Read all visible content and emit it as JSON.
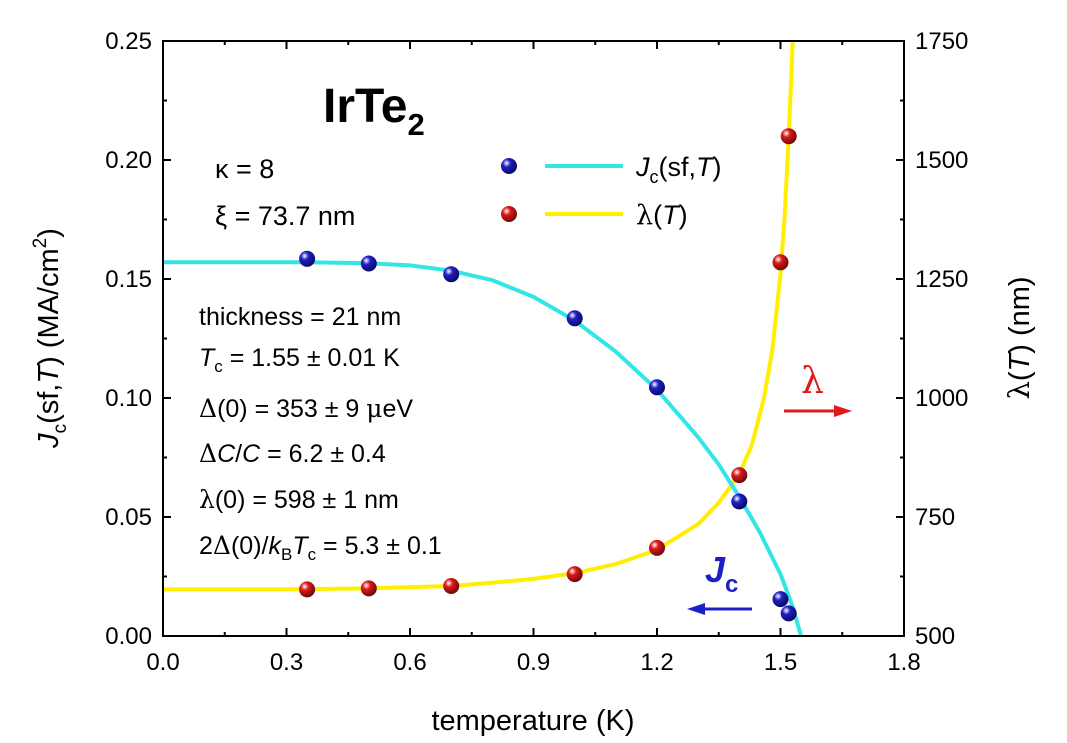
{
  "chart_data": {
    "type": "scatter",
    "title": "IrTe2",
    "xlabel": "temperature (K)",
    "ylabel_left": "Jc(sf,T) (MA/cm2)",
    "ylabel_right": "λ(T) (nm)",
    "xlim": [
      0.0,
      1.8
    ],
    "ylim_left": [
      0.0,
      0.25
    ],
    "ylim_right": [
      500,
      1750
    ],
    "x_ticks": [
      "0.0",
      "0.3",
      "0.6",
      "0.9",
      "1.2",
      "1.5",
      "1.8"
    ],
    "y_left_ticks": [
      "0.00",
      "0.05",
      "0.10",
      "0.15",
      "0.20",
      "0.25"
    ],
    "y_right_ticks": [
      "500",
      "750",
      "1000",
      "1250",
      "1500",
      "1750"
    ],
    "grid": false,
    "legend_position": "top-right",
    "series": [
      {
        "name": "Jc(sf,T)",
        "axis": "left",
        "marker_color": "#1f1fc8",
        "line_color": "#33e6e6",
        "x": [
          0.35,
          0.5,
          0.7,
          1.0,
          1.2,
          1.4,
          1.5,
          1.52
        ],
        "y": [
          0.1585,
          0.1565,
          0.152,
          0.1335,
          0.1045,
          0.0565,
          0.0155,
          0.0095
        ],
        "fit_x": [
          0.0,
          0.2,
          0.35,
          0.5,
          0.6,
          0.7,
          0.8,
          0.9,
          1.0,
          1.1,
          1.2,
          1.3,
          1.35,
          1.4,
          1.45,
          1.5,
          1.53,
          1.55
        ],
        "fit_y": [
          0.157,
          0.157,
          0.157,
          0.1566,
          0.1557,
          0.1535,
          0.1495,
          0.1425,
          0.1325,
          0.1195,
          0.1035,
          0.0835,
          0.072,
          0.0585,
          0.0435,
          0.026,
          0.012,
          0.0
        ]
      },
      {
        "name": "λ(T)",
        "axis": "right",
        "marker_color": "#e01818",
        "line_color": "#ffee00",
        "x": [
          0.35,
          0.5,
          0.7,
          1.0,
          1.2,
          1.4,
          1.5,
          1.52
        ],
        "y": [
          598,
          600,
          605,
          630,
          685,
          838,
          1285,
          1550
        ],
        "fit_x": [
          0.0,
          0.3,
          0.5,
          0.7,
          0.8,
          0.9,
          1.0,
          1.1,
          1.2,
          1.3,
          1.35,
          1.4,
          1.43,
          1.46,
          1.48,
          1.5,
          1.51,
          1.52,
          1.525,
          1.53
        ],
        "fit_y": [
          598,
          598,
          600,
          605,
          612,
          620,
          632,
          651,
          681,
          735,
          780,
          840,
          900,
          1000,
          1100,
          1260,
          1380,
          1550,
          1650,
          1760
        ]
      }
    ],
    "annotations": {
      "title_main": "IrTe",
      "title_sub": "2",
      "kappa": "κ = 8",
      "xi": "ξ = 73.7 nm",
      "params": [
        "thickness = 21 nm",
        "Tc = 1.55 ± 0.01 K",
        "Δ(0) = 353 ± 9 μeV",
        "ΔC/C = 6.2 ± 0.4",
        "λ(0) = 598 ± 1 nm",
        "2Δ(0)/kBTc = 5.3 ± 0.1"
      ],
      "lambda_arrow_label": "λ",
      "jc_arrow_label": "Jc"
    }
  }
}
